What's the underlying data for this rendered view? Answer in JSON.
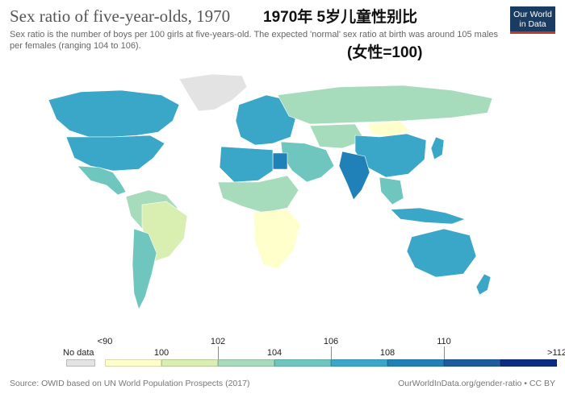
{
  "header": {
    "title": "Sex ratio of five-year-olds, 1970",
    "subtitle": "Sex ratio is the number of boys per 100 girls at five-years-old. The expected 'normal' sex ratio at birth was around 105 males per females (ranging 104 to 106).",
    "overlay_title_cn": "1970年 5岁儿童性别比",
    "overlay_subtitle_cn": "(女性=100)"
  },
  "logo": {
    "line1": "Our World",
    "line2": "in Data"
  },
  "legend": {
    "no_data_label": "No data",
    "bins": [
      {
        "label": "<90",
        "color": "#ffffcc"
      },
      {
        "label": "100",
        "color": "#d9efb1"
      },
      {
        "label": "102",
        "color": "#a6dbbb"
      },
      {
        "label": "104",
        "color": "#6fc6bf"
      },
      {
        "label": "106",
        "color": "#3ba7c8"
      },
      {
        "label": "108",
        "color": "#2080b8"
      },
      {
        "label": "110",
        "color": "#1d5d9e"
      },
      {
        "label": ">112",
        "color": "#0c2c84"
      }
    ]
  },
  "footer": {
    "source": "Source: OWID based on UN World Population Prospects (2017)",
    "url": "OurWorldInData.org/gender-ratio • CC BY"
  }
}
